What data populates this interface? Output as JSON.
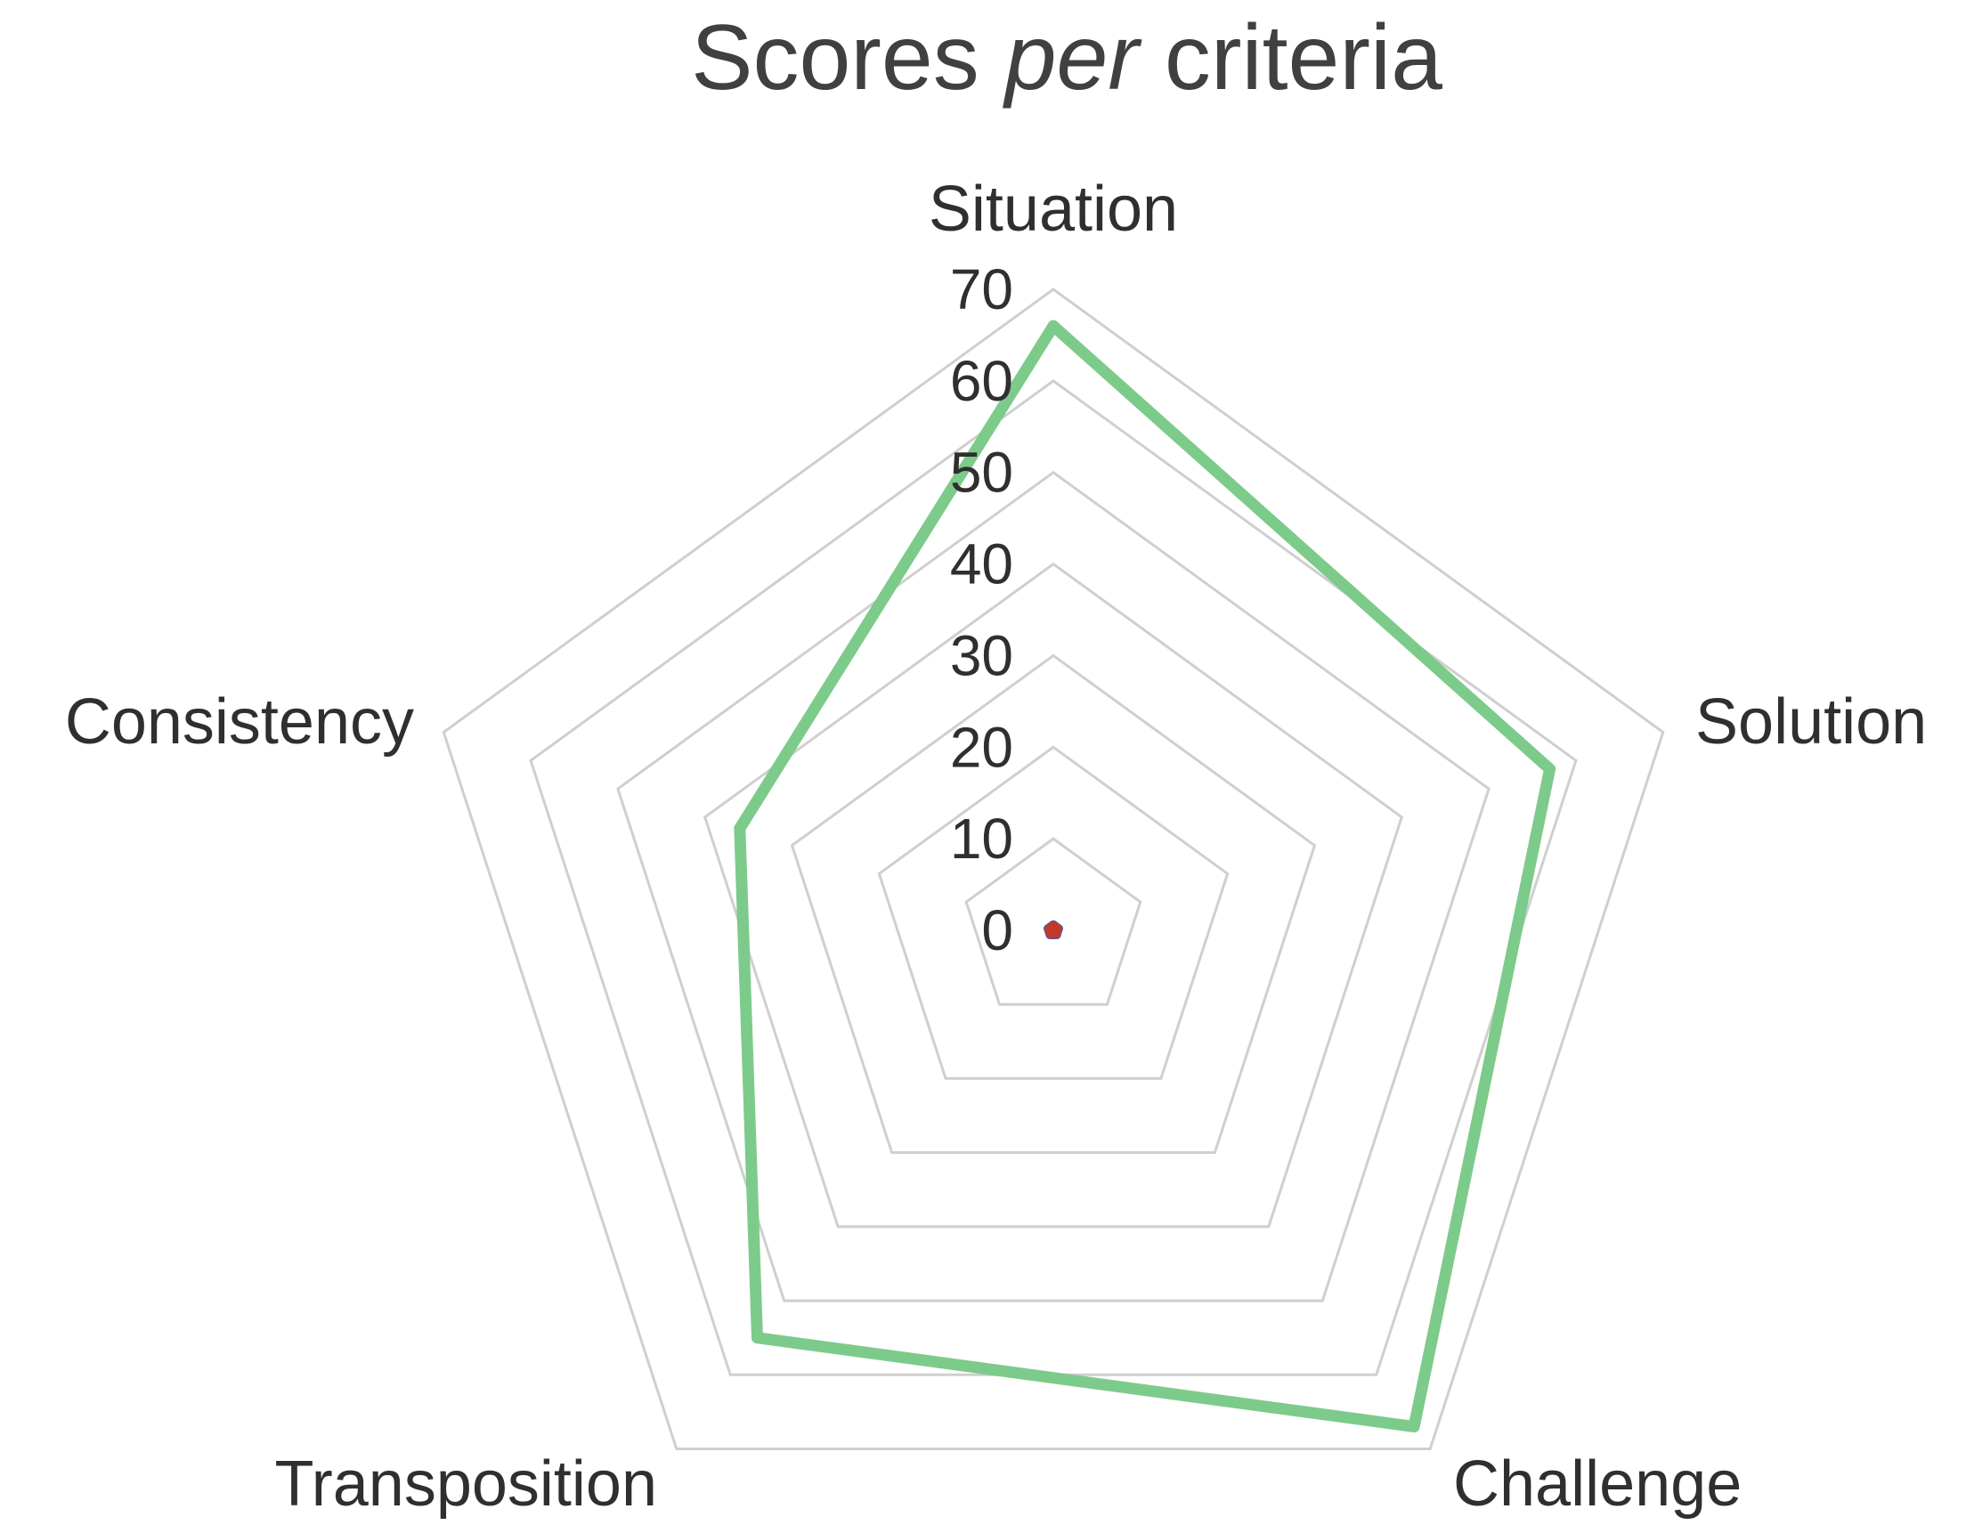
{
  "chart_data": {
    "type": "radar",
    "title_parts": [
      "Scores ",
      "per",
      " criteria"
    ],
    "categories": [
      "Situation",
      "Solution",
      "Challenge",
      "Transposition",
      "Consistency"
    ],
    "r_ticks": [
      0,
      10,
      20,
      30,
      40,
      50,
      60,
      70
    ],
    "rlim": [
      0,
      70
    ],
    "grid": true,
    "series": [
      {
        "values": [
          66,
          57,
          67,
          55,
          36
        ],
        "color": "#7dcb8a",
        "line_width": 13
      },
      {
        "values": [
          0.6,
          0.6,
          0.6,
          0.6,
          0.6
        ],
        "color": "#3a63c4",
        "line_width": 10
      },
      {
        "values": [
          0.5,
          0.5,
          0.5,
          0.5,
          0.5
        ],
        "color": "#c0392b",
        "line_width": 10
      }
    ]
  }
}
